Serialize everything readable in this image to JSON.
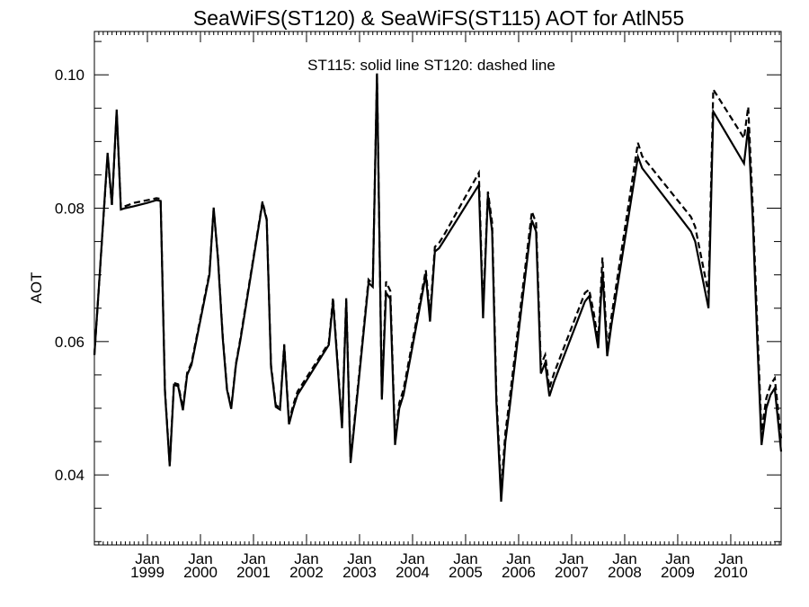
{
  "chart_data": {
    "type": "line",
    "title": "SeaWiFS(ST120) & SeaWiFS(ST115)  AOT for AtlN55",
    "ylabel": "AOT",
    "xlabel": "",
    "annotation": "ST115: solid line   ST120: dashed line",
    "xlim": [
      1998.0,
      2010.95
    ],
    "ylim": [
      0.0295,
      0.1065
    ],
    "y_ticks": [
      0.04,
      0.06,
      0.08,
      0.1
    ],
    "y_tick_labels": [
      "0.04",
      "0.06",
      "0.08",
      "0.10"
    ],
    "x_ticks": [
      {
        "x": 1999.0,
        "month": "Jan",
        "year": "1999"
      },
      {
        "x": 2000.0,
        "month": "Jan",
        "year": "2000"
      },
      {
        "x": 2001.0,
        "month": "Jan",
        "year": "2001"
      },
      {
        "x": 2002.0,
        "month": "Jan",
        "year": "2002"
      },
      {
        "x": 2003.0,
        "month": "Jan",
        "year": "2003"
      },
      {
        "x": 2004.0,
        "month": "Jan",
        "year": "2004"
      },
      {
        "x": 2005.0,
        "month": "Jan",
        "year": "2005"
      },
      {
        "x": 2006.0,
        "month": "Jan",
        "year": "2006"
      },
      {
        "x": 2007.0,
        "month": "Jan",
        "year": "2007"
      },
      {
        "x": 2008.0,
        "month": "Jan",
        "year": "2008"
      },
      {
        "x": 2009.0,
        "month": "Jan",
        "year": "2009"
      },
      {
        "x": 2010.0,
        "month": "Jan",
        "year": "2010"
      }
    ],
    "grid": false,
    "legend": "none",
    "series": [
      {
        "name": "ST115",
        "style": "solid",
        "x": [
          1998.0,
          1998.1,
          1998.25,
          1998.33,
          1998.42,
          1998.5,
          1998.58,
          1998.75,
          1999.0,
          1999.17,
          1999.25,
          1999.33,
          1999.42,
          1999.5,
          1999.58,
          1999.67,
          1999.75,
          1999.83,
          2000.17,
          2000.25,
          2000.33,
          2000.42,
          2000.5,
          2000.58,
          2000.67,
          2000.75,
          2000.83,
          2001.17,
          2001.25,
          2001.33,
          2001.42,
          2001.5,
          2001.58,
          2001.67,
          2001.75,
          2001.83,
          2002.42,
          2002.5,
          2002.67,
          2002.75,
          2002.83,
          2003.17,
          2003.25,
          2003.33,
          2003.42,
          2003.5,
          2003.58,
          2003.67,
          2003.75,
          2003.83,
          2004.25,
          2004.33,
          2004.42,
          2004.5,
          2004.58,
          2005.25,
          2005.33,
          2005.42,
          2005.5,
          2005.58,
          2005.67,
          2005.75,
          2005.83,
          2006.25,
          2006.33,
          2006.42,
          2006.5,
          2006.58,
          2006.67,
          2007.25,
          2007.33,
          2007.42,
          2007.5,
          2007.58,
          2007.67,
          2007.75,
          2008.25,
          2008.33,
          2009.25,
          2009.33,
          2009.58,
          2009.67,
          2010.25,
          2010.33,
          2010.42,
          2010.5,
          2010.58,
          2010.67,
          2010.75,
          2010.83,
          2010.95
        ],
        "y": [
          0.058,
          0.07,
          0.0883,
          0.0805,
          0.0948,
          0.0798,
          0.08,
          0.0803,
          0.0808,
          0.0812,
          0.0811,
          0.0525,
          0.0413,
          0.0535,
          0.0533,
          0.0497,
          0.055,
          0.0565,
          0.07,
          0.0801,
          0.0724,
          0.0605,
          0.0528,
          0.0499,
          0.0565,
          0.06,
          0.064,
          0.0808,
          0.0782,
          0.0562,
          0.0502,
          0.0498,
          0.0593,
          0.0476,
          0.05,
          0.052,
          0.0595,
          0.0661,
          0.047,
          0.0662,
          0.0418,
          0.0688,
          0.0682,
          0.1002,
          0.0513,
          0.0673,
          0.0664,
          0.0445,
          0.05,
          0.052,
          0.07,
          0.063,
          0.0735,
          0.074,
          0.075,
          0.0835,
          0.0635,
          0.082,
          0.0765,
          0.051,
          0.036,
          0.045,
          0.05,
          0.0782,
          0.0765,
          0.0552,
          0.0568,
          0.0518,
          0.054,
          0.066,
          0.0668,
          0.063,
          0.059,
          0.0705,
          0.0578,
          0.0625,
          0.0877,
          0.086,
          0.0765,
          0.075,
          0.065,
          0.0945,
          0.0867,
          0.0922,
          0.0775,
          0.06,
          0.0445,
          0.05,
          0.052,
          0.053,
          0.0435
        ]
      },
      {
        "name": "ST120",
        "style": "dashed",
        "x": [
          1998.0,
          1998.1,
          1998.25,
          1998.33,
          1998.42,
          1998.5,
          1998.58,
          1998.75,
          1999.0,
          1999.17,
          1999.25,
          1999.33,
          1999.42,
          1999.5,
          1999.58,
          1999.67,
          1999.75,
          1999.83,
          2000.17,
          2000.25,
          2000.33,
          2000.42,
          2000.5,
          2000.58,
          2000.67,
          2000.75,
          2000.83,
          2001.17,
          2001.25,
          2001.33,
          2001.42,
          2001.5,
          2001.58,
          2001.67,
          2001.75,
          2001.83,
          2002.42,
          2002.5,
          2002.67,
          2002.75,
          2002.83,
          2003.17,
          2003.25,
          2003.33,
          2003.42,
          2003.5,
          2003.58,
          2003.67,
          2003.75,
          2003.83,
          2004.25,
          2004.33,
          2004.42,
          2004.5,
          2004.58,
          2005.25,
          2005.33,
          2005.42,
          2005.5,
          2005.58,
          2005.67,
          2005.75,
          2005.83,
          2006.25,
          2006.33,
          2006.42,
          2006.5,
          2006.58,
          2006.67,
          2007.25,
          2007.33,
          2007.42,
          2007.5,
          2007.58,
          2007.67,
          2007.75,
          2008.25,
          2008.33,
          2009.25,
          2009.33,
          2009.58,
          2009.67,
          2010.25,
          2010.33,
          2010.42,
          2010.5,
          2010.58,
          2010.67,
          2010.75,
          2010.83,
          2010.95
        ],
        "y": [
          0.058,
          0.07,
          0.088,
          0.0805,
          0.0945,
          0.08,
          0.0803,
          0.0808,
          0.0812,
          0.0815,
          0.0814,
          0.0528,
          0.0415,
          0.0538,
          0.0536,
          0.05,
          0.0553,
          0.0568,
          0.0703,
          0.0799,
          0.0726,
          0.0608,
          0.053,
          0.0501,
          0.0567,
          0.0603,
          0.0643,
          0.081,
          0.0784,
          0.0565,
          0.0505,
          0.05,
          0.0596,
          0.048,
          0.0505,
          0.0525,
          0.0598,
          0.0666,
          0.0474,
          0.0665,
          0.0422,
          0.0693,
          0.0686,
          0.1,
          0.0516,
          0.069,
          0.0676,
          0.0453,
          0.0508,
          0.0528,
          0.0707,
          0.064,
          0.0742,
          0.0748,
          0.0758,
          0.0853,
          0.0645,
          0.0825,
          0.0778,
          0.052,
          0.0378,
          0.0463,
          0.0513,
          0.0795,
          0.0778,
          0.0565,
          0.058,
          0.053,
          0.0553,
          0.0673,
          0.0678,
          0.0642,
          0.06,
          0.0726,
          0.0588,
          0.0637,
          0.0898,
          0.0878,
          0.0787,
          0.0772,
          0.0672,
          0.0978,
          0.0905,
          0.0952,
          0.0795,
          0.0622,
          0.0465,
          0.0515,
          0.0535,
          0.0545,
          0.0455
        ]
      }
    ]
  }
}
